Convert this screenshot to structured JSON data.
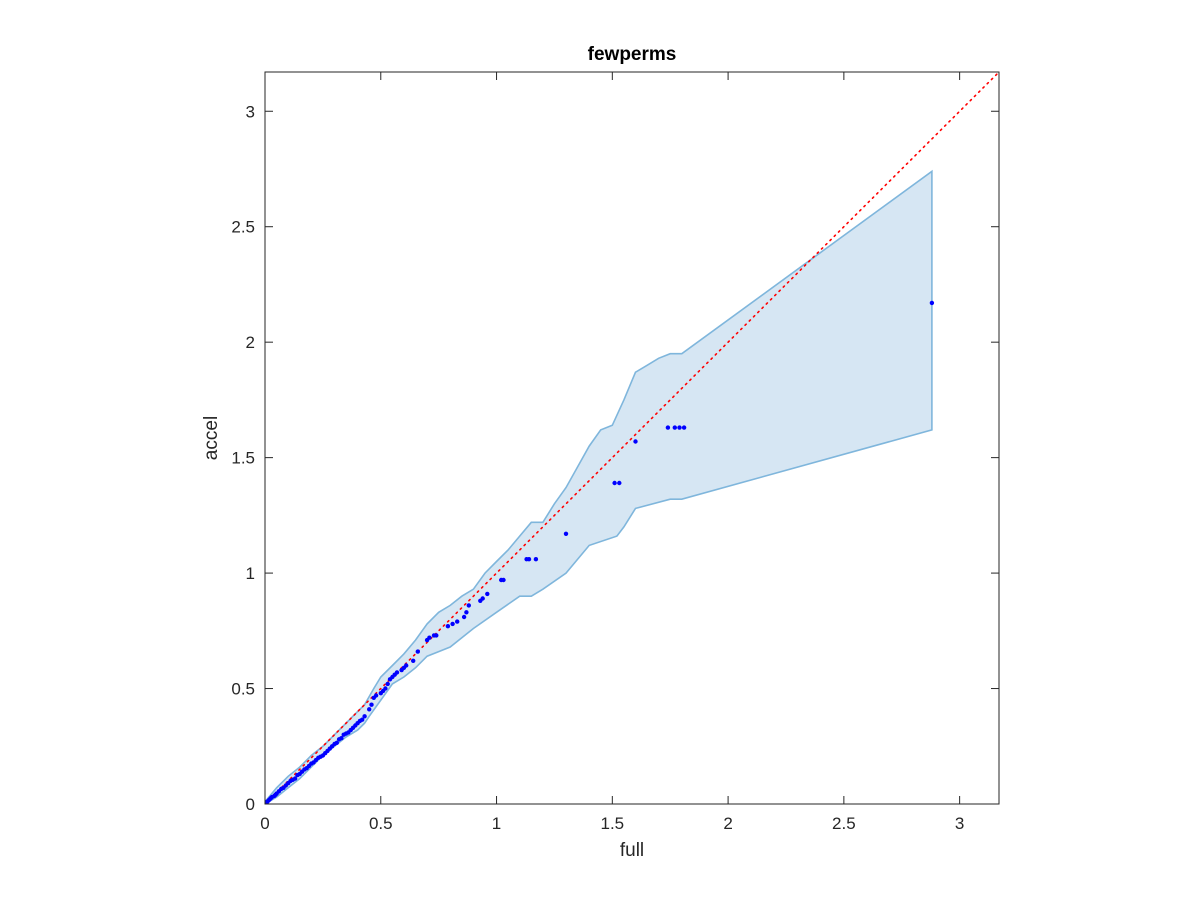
{
  "chart_data": {
    "type": "scatter",
    "title": "fewperms",
    "xlabel": "full",
    "ylabel": "accel",
    "xlim": [
      0,
      3.17
    ],
    "ylim": [
      0,
      3.17
    ],
    "xticks": [
      0,
      0.5,
      1,
      1.5,
      2,
      2.5,
      3
    ],
    "xtick_labels": [
      "0",
      "0.5",
      "1",
      "1.5",
      "2",
      "2.5",
      "3"
    ],
    "yticks": [
      0,
      0.5,
      1,
      1.5,
      2,
      2.5,
      3
    ],
    "ytick_labels": [
      "0",
      "0.5",
      "1",
      "1.5",
      "2",
      "2.5",
      "3"
    ],
    "grid": false,
    "legend": "none",
    "colors": {
      "points": "#0000ff",
      "reference_line": "#ff0000",
      "band_fill": "#d6e6f3",
      "band_edge": "#7fb6dc",
      "axes": "#262626"
    },
    "reference_line": {
      "style": "dotted",
      "x": [
        0,
        3.17
      ],
      "y": [
        0,
        3.17
      ]
    },
    "band": {
      "upper": [
        [
          0,
          0.01
        ],
        [
          0.05,
          0.07
        ],
        [
          0.1,
          0.12
        ],
        [
          0.15,
          0.16
        ],
        [
          0.2,
          0.21
        ],
        [
          0.25,
          0.25
        ],
        [
          0.3,
          0.3
        ],
        [
          0.35,
          0.35
        ],
        [
          0.4,
          0.4
        ],
        [
          0.43,
          0.43
        ],
        [
          0.47,
          0.5
        ],
        [
          0.5,
          0.55
        ],
        [
          0.55,
          0.6
        ],
        [
          0.6,
          0.65
        ],
        [
          0.65,
          0.71
        ],
        [
          0.7,
          0.78
        ],
        [
          0.75,
          0.83
        ],
        [
          0.8,
          0.86
        ],
        [
          0.85,
          0.9
        ],
        [
          0.9,
          0.93
        ],
        [
          0.95,
          1.0
        ],
        [
          1.0,
          1.05
        ],
        [
          1.05,
          1.1
        ],
        [
          1.1,
          1.16
        ],
        [
          1.15,
          1.22
        ],
        [
          1.2,
          1.22
        ],
        [
          1.25,
          1.3
        ],
        [
          1.3,
          1.37
        ],
        [
          1.35,
          1.46
        ],
        [
          1.4,
          1.55
        ],
        [
          1.45,
          1.62
        ],
        [
          1.5,
          1.64
        ],
        [
          1.55,
          1.75
        ],
        [
          1.6,
          1.87
        ],
        [
          1.65,
          1.9
        ],
        [
          1.7,
          1.93
        ],
        [
          1.75,
          1.95
        ],
        [
          1.8,
          1.95
        ],
        [
          2.88,
          2.74
        ]
      ],
      "lower": [
        [
          2.88,
          1.62
        ],
        [
          1.8,
          1.32
        ],
        [
          1.75,
          1.32
        ],
        [
          1.6,
          1.28
        ],
        [
          1.55,
          1.2
        ],
        [
          1.52,
          1.16
        ],
        [
          1.4,
          1.12
        ],
        [
          1.3,
          1.0
        ],
        [
          1.2,
          0.93
        ],
        [
          1.15,
          0.9
        ],
        [
          1.1,
          0.9
        ],
        [
          1.0,
          0.83
        ],
        [
          0.9,
          0.76
        ],
        [
          0.8,
          0.68
        ],
        [
          0.75,
          0.66
        ],
        [
          0.7,
          0.64
        ],
        [
          0.65,
          0.59
        ],
        [
          0.6,
          0.55
        ],
        [
          0.55,
          0.52
        ],
        [
          0.5,
          0.45
        ],
        [
          0.45,
          0.38
        ],
        [
          0.43,
          0.35
        ],
        [
          0.4,
          0.32
        ],
        [
          0.35,
          0.29
        ],
        [
          0.3,
          0.25
        ],
        [
          0.25,
          0.21
        ],
        [
          0.2,
          0.16
        ],
        [
          0.15,
          0.11
        ],
        [
          0.1,
          0.07
        ],
        [
          0.05,
          0.03
        ],
        [
          0,
          0.0
        ]
      ]
    },
    "points": {
      "x": [
        0,
        0.005,
        0.01,
        0.015,
        0.02,
        0.025,
        0.03,
        0.04,
        0.045,
        0.05,
        0.06,
        0.07,
        0.08,
        0.09,
        0.1,
        0.11,
        0.12,
        0.13,
        0.14,
        0.15,
        0.16,
        0.17,
        0.18,
        0.19,
        0.2,
        0.21,
        0.22,
        0.23,
        0.24,
        0.25,
        0.26,
        0.27,
        0.28,
        0.29,
        0.3,
        0.31,
        0.32,
        0.33,
        0.34,
        0.35,
        0.36,
        0.37,
        0.38,
        0.39,
        0.4,
        0.41,
        0.42,
        0.43,
        0.45,
        0.46,
        0.47,
        0.48,
        0.5,
        0.51,
        0.52,
        0.53,
        0.54,
        0.55,
        0.56,
        0.57,
        0.59,
        0.6,
        0.61,
        0.64,
        0.66,
        0.7,
        0.71,
        0.73,
        0.74,
        0.79,
        0.81,
        0.83,
        0.86,
        0.87,
        0.88,
        0.93,
        0.94,
        0.96,
        1.02,
        1.03,
        1.13,
        1.14,
        1.17,
        1.3,
        1.51,
        1.53,
        1.6,
        1.74,
        1.77,
        1.79,
        1.81,
        2.88
      ],
      "y": [
        0,
        0.005,
        0.01,
        0.015,
        0.02,
        0.025,
        0.03,
        0.035,
        0.04,
        0.045,
        0.055,
        0.065,
        0.07,
        0.08,
        0.09,
        0.1,
        0.105,
        0.11,
        0.125,
        0.13,
        0.14,
        0.15,
        0.155,
        0.165,
        0.175,
        0.18,
        0.19,
        0.2,
        0.205,
        0.21,
        0.22,
        0.23,
        0.24,
        0.25,
        0.26,
        0.265,
        0.28,
        0.285,
        0.3,
        0.305,
        0.31,
        0.32,
        0.33,
        0.34,
        0.35,
        0.36,
        0.365,
        0.38,
        0.41,
        0.43,
        0.46,
        0.47,
        0.48,
        0.49,
        0.5,
        0.52,
        0.54,
        0.55,
        0.56,
        0.57,
        0.58,
        0.59,
        0.6,
        0.62,
        0.66,
        0.71,
        0.72,
        0.73,
        0.73,
        0.77,
        0.78,
        0.79,
        0.81,
        0.83,
        0.86,
        0.88,
        0.89,
        0.91,
        0.97,
        0.97,
        1.06,
        1.06,
        1.06,
        1.17,
        1.39,
        1.39,
        1.57,
        1.63,
        1.63,
        1.63,
        1.63,
        2.17
      ]
    }
  }
}
